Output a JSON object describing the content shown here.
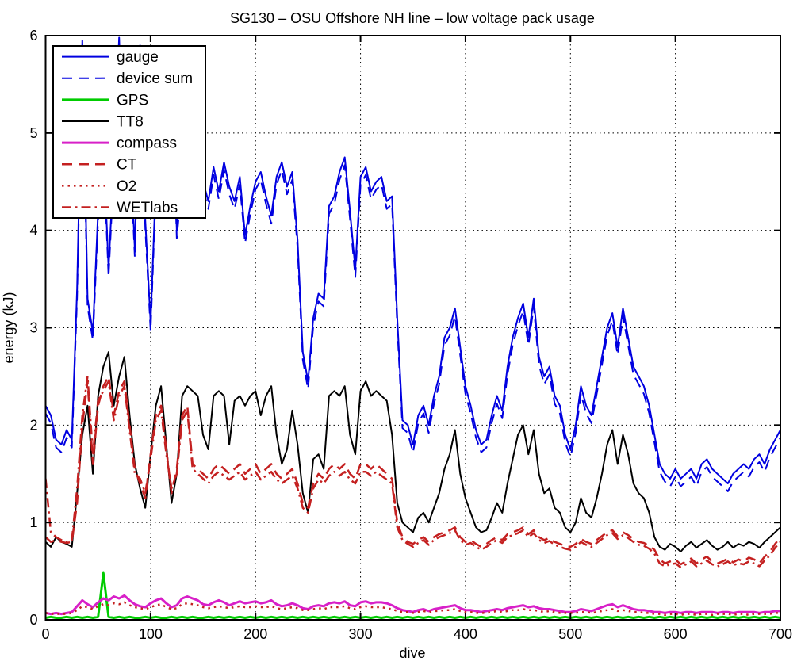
{
  "figure": {
    "background": "#ffffff",
    "axes_color": "#000000",
    "grid_color": "#000000"
  },
  "chart_data": {
    "type": "line",
    "title": "SG130 – OSU Offshore NH line – low voltage pack usage",
    "xlabel": "dive",
    "ylabel": "energy (kJ)",
    "xlim": [
      0,
      700
    ],
    "ylim": [
      0,
      6
    ],
    "xticks": [
      0,
      100,
      200,
      300,
      400,
      500,
      600,
      700
    ],
    "yticks": [
      0,
      1,
      2,
      3,
      4,
      5,
      6
    ],
    "grid": true,
    "grid_style": "dotted",
    "legend_position": "top-left",
    "x_start": 0,
    "x_step": 5,
    "series": [
      {
        "name": "gauge",
        "color": "#0000e0",
        "style": "solid",
        "width": 2,
        "values": [
          2.2,
          2.1,
          1.85,
          1.8,
          1.95,
          1.85,
          3.4,
          5.95,
          3.3,
          2.95,
          4.2,
          4.9,
          3.6,
          4.7,
          5.98,
          4.3,
          5.0,
          3.8,
          5.9,
          4.1,
          3.05,
          4.5,
          5.6,
          4.2,
          5.7,
          4.0,
          4.6,
          5.0,
          4.3,
          5.8,
          4.5,
          4.3,
          4.65,
          4.4,
          4.7,
          4.45,
          4.3,
          4.55,
          3.95,
          4.25,
          4.5,
          4.6,
          4.35,
          4.15,
          4.55,
          4.7,
          4.45,
          4.6,
          3.9,
          2.75,
          2.45,
          3.1,
          3.35,
          3.3,
          4.25,
          4.35,
          4.6,
          4.75,
          4.2,
          3.6,
          4.55,
          4.65,
          4.4,
          4.5,
          4.55,
          4.3,
          4.35,
          3.1,
          2.05,
          2.0,
          1.8,
          2.1,
          2.2,
          2.0,
          2.3,
          2.5,
          2.9,
          3.0,
          3.2,
          2.8,
          2.4,
          2.2,
          1.95,
          1.8,
          1.85,
          2.1,
          2.3,
          2.15,
          2.6,
          2.9,
          3.1,
          3.25,
          2.9,
          3.3,
          2.7,
          2.5,
          2.6,
          2.3,
          2.2,
          1.9,
          1.75,
          2.0,
          2.4,
          2.2,
          2.1,
          2.4,
          2.7,
          3.0,
          3.15,
          2.8,
          3.2,
          2.9,
          2.6,
          2.5,
          2.4,
          2.2,
          1.9,
          1.6,
          1.5,
          1.45,
          1.55,
          1.45,
          1.5,
          1.55,
          1.45,
          1.6,
          1.65,
          1.55,
          1.5,
          1.45,
          1.4,
          1.5,
          1.55,
          1.6,
          1.55,
          1.65,
          1.7,
          1.6,
          1.75,
          1.85,
          1.95
        ]
      },
      {
        "name": "device sum",
        "color": "#0000e0",
        "style": "dashed",
        "width": 2,
        "values": [
          2.12,
          2.02,
          1.77,
          1.72,
          1.87,
          1.77,
          3.32,
          5.87,
          3.22,
          2.87,
          4.12,
          4.82,
          3.52,
          4.62,
          5.9,
          4.22,
          4.92,
          3.72,
          5.82,
          4.02,
          2.97,
          4.42,
          5.52,
          4.12,
          5.62,
          3.92,
          4.52,
          4.92,
          4.22,
          5.72,
          4.42,
          4.22,
          4.57,
          4.32,
          4.62,
          4.37,
          4.22,
          4.47,
          3.87,
          4.17,
          4.42,
          4.52,
          4.27,
          4.07,
          4.47,
          4.62,
          4.37,
          4.52,
          3.82,
          2.67,
          2.37,
          3.02,
          3.27,
          3.22,
          4.17,
          4.27,
          4.52,
          4.67,
          4.12,
          3.52,
          4.47,
          4.57,
          4.32,
          4.42,
          4.47,
          4.22,
          4.27,
          3.02,
          1.97,
          1.92,
          1.72,
          2.02,
          2.12,
          1.92,
          2.22,
          2.42,
          2.82,
          2.92,
          3.12,
          2.72,
          2.32,
          2.12,
          1.87,
          1.72,
          1.77,
          2.02,
          2.22,
          2.07,
          2.52,
          2.82,
          3.02,
          3.17,
          2.82,
          3.22,
          2.62,
          2.42,
          2.52,
          2.22,
          2.12,
          1.82,
          1.67,
          1.92,
          2.32,
          2.12,
          2.02,
          2.32,
          2.62,
          2.92,
          3.07,
          2.72,
          3.12,
          2.82,
          2.52,
          2.42,
          2.32,
          2.12,
          1.82,
          1.52,
          1.42,
          1.37,
          1.47,
          1.37,
          1.42,
          1.47,
          1.37,
          1.52,
          1.57,
          1.47,
          1.42,
          1.37,
          1.32,
          1.42,
          1.47,
          1.52,
          1.47,
          1.57,
          1.62,
          1.52,
          1.67,
          1.77,
          1.87
        ]
      },
      {
        "name": "GPS",
        "color": "#00cc00",
        "style": "solid",
        "width": 3,
        "values": [
          0.02,
          0.03,
          0.02,
          0.02,
          0.03,
          0.02,
          0.03,
          0.02,
          0.03,
          0.02,
          0.03,
          0.48,
          0.03,
          0.02,
          0.03,
          0.02,
          0.03,
          0.02,
          0.02,
          0.03,
          0.02,
          0.03,
          0.02,
          0.02,
          0.03,
          0.02,
          0.03,
          0.02,
          0.03,
          0.02,
          0.02,
          0.03,
          0.02,
          0.03,
          0.02,
          0.03,
          0.02,
          0.03,
          0.02,
          0.03,
          0.02,
          0.03,
          0.02,
          0.03,
          0.02,
          0.03,
          0.02,
          0.03,
          0.02,
          0.03,
          0.02,
          0.03,
          0.02,
          0.03,
          0.02,
          0.03,
          0.02,
          0.03,
          0.02,
          0.03,
          0.02,
          0.03,
          0.02,
          0.03,
          0.02,
          0.03,
          0.02,
          0.03,
          0.02,
          0.03,
          0.02,
          0.03,
          0.02,
          0.03,
          0.02,
          0.03,
          0.02,
          0.03,
          0.02,
          0.03,
          0.02,
          0.03,
          0.02,
          0.03,
          0.02,
          0.03,
          0.02,
          0.03,
          0.02,
          0.03,
          0.02,
          0.03,
          0.02,
          0.03,
          0.02,
          0.03,
          0.02,
          0.03,
          0.02,
          0.03,
          0.02,
          0.03,
          0.02,
          0.03,
          0.02,
          0.03,
          0.02,
          0.03,
          0.02,
          0.03,
          0.02,
          0.03,
          0.02,
          0.03,
          0.02,
          0.03,
          0.02,
          0.03,
          0.02,
          0.03,
          0.02,
          0.03,
          0.02,
          0.03,
          0.02,
          0.03,
          0.02,
          0.03,
          0.02,
          0.03,
          0.02,
          0.03,
          0.02,
          0.03,
          0.02,
          0.03,
          0.02,
          0.03,
          0.02,
          0.03,
          0.02
        ]
      },
      {
        "name": "TT8",
        "color": "#000000",
        "style": "solid",
        "width": 2,
        "values": [
          0.8,
          0.75,
          0.85,
          0.8,
          0.78,
          0.75,
          1.3,
          1.9,
          2.2,
          1.5,
          2.3,
          2.6,
          2.75,
          2.2,
          2.5,
          2.7,
          2.1,
          1.6,
          1.35,
          1.15,
          1.7,
          2.2,
          2.4,
          1.8,
          1.2,
          1.5,
          2.3,
          2.4,
          2.35,
          2.3,
          1.9,
          1.75,
          2.3,
          2.35,
          2.3,
          1.8,
          2.25,
          2.3,
          2.2,
          2.3,
          2.35,
          2.1,
          2.3,
          2.4,
          1.9,
          1.6,
          1.75,
          2.15,
          1.8,
          1.3,
          1.1,
          1.65,
          1.7,
          1.55,
          2.3,
          2.35,
          2.3,
          2.4,
          1.9,
          1.7,
          2.35,
          2.45,
          2.3,
          2.35,
          2.3,
          2.25,
          1.9,
          1.2,
          1.0,
          0.95,
          0.9,
          1.05,
          1.1,
          1.0,
          1.15,
          1.3,
          1.55,
          1.7,
          1.95,
          1.5,
          1.25,
          1.1,
          0.95,
          0.9,
          0.92,
          1.05,
          1.2,
          1.1,
          1.4,
          1.65,
          1.9,
          2.0,
          1.7,
          1.95,
          1.5,
          1.3,
          1.35,
          1.15,
          1.1,
          0.95,
          0.9,
          1.0,
          1.25,
          1.1,
          1.05,
          1.25,
          1.5,
          1.8,
          1.95,
          1.6,
          1.9,
          1.7,
          1.4,
          1.3,
          1.25,
          1.1,
          0.85,
          0.75,
          0.72,
          0.78,
          0.75,
          0.7,
          0.76,
          0.8,
          0.74,
          0.78,
          0.82,
          0.76,
          0.72,
          0.75,
          0.8,
          0.74,
          0.78,
          0.76,
          0.8,
          0.78,
          0.74,
          0.8,
          0.85,
          0.9,
          0.95
        ]
      },
      {
        "name": "compass",
        "color": "#d820c8",
        "style": "solid",
        "width": 3,
        "values": [
          0.07,
          0.06,
          0.07,
          0.06,
          0.07,
          0.08,
          0.14,
          0.2,
          0.16,
          0.13,
          0.18,
          0.22,
          0.2,
          0.24,
          0.22,
          0.25,
          0.2,
          0.16,
          0.14,
          0.13,
          0.17,
          0.2,
          0.22,
          0.17,
          0.13,
          0.15,
          0.22,
          0.24,
          0.22,
          0.2,
          0.16,
          0.15,
          0.18,
          0.2,
          0.18,
          0.15,
          0.17,
          0.19,
          0.17,
          0.18,
          0.19,
          0.17,
          0.18,
          0.2,
          0.16,
          0.14,
          0.15,
          0.17,
          0.15,
          0.12,
          0.11,
          0.14,
          0.15,
          0.14,
          0.17,
          0.18,
          0.17,
          0.19,
          0.15,
          0.14,
          0.18,
          0.19,
          0.17,
          0.18,
          0.18,
          0.17,
          0.15,
          0.12,
          0.1,
          0.09,
          0.08,
          0.1,
          0.11,
          0.09,
          0.11,
          0.12,
          0.13,
          0.14,
          0.15,
          0.12,
          0.1,
          0.1,
          0.09,
          0.08,
          0.09,
          0.1,
          0.11,
          0.1,
          0.12,
          0.13,
          0.14,
          0.15,
          0.13,
          0.14,
          0.12,
          0.11,
          0.11,
          0.1,
          0.09,
          0.08,
          0.08,
          0.09,
          0.11,
          0.1,
          0.09,
          0.11,
          0.13,
          0.15,
          0.16,
          0.13,
          0.15,
          0.13,
          0.11,
          0.1,
          0.1,
          0.09,
          0.08,
          0.08,
          0.07,
          0.08,
          0.08,
          0.07,
          0.08,
          0.08,
          0.07,
          0.08,
          0.08,
          0.08,
          0.07,
          0.08,
          0.08,
          0.07,
          0.08,
          0.08,
          0.08,
          0.08,
          0.07,
          0.08,
          0.08,
          0.09,
          0.09
        ]
      },
      {
        "name": "CT",
        "color": "#c42020",
        "style": "dashed",
        "width": 2.5,
        "values": [
          0.85,
          0.8,
          0.82,
          0.8,
          0.79,
          0.8,
          1.2,
          2.0,
          2.45,
          1.6,
          2.2,
          2.4,
          2.5,
          2.1,
          2.35,
          2.45,
          2.0,
          1.55,
          1.4,
          1.25,
          1.7,
          2.1,
          2.2,
          1.75,
          1.3,
          1.55,
          2.1,
          2.2,
          1.6,
          1.55,
          1.5,
          1.45,
          1.55,
          1.6,
          1.55,
          1.5,
          1.55,
          1.6,
          1.5,
          1.55,
          1.6,
          1.5,
          1.55,
          1.6,
          1.5,
          1.45,
          1.5,
          1.55,
          1.4,
          1.2,
          1.15,
          1.4,
          1.5,
          1.45,
          1.55,
          1.6,
          1.55,
          1.6,
          1.5,
          1.45,
          1.6,
          1.6,
          1.55,
          1.6,
          1.55,
          1.5,
          1.45,
          1.0,
          0.85,
          0.8,
          0.78,
          0.82,
          0.85,
          0.8,
          0.85,
          0.88,
          0.9,
          0.92,
          0.95,
          0.85,
          0.8,
          0.82,
          0.78,
          0.75,
          0.78,
          0.82,
          0.85,
          0.82,
          0.88,
          0.9,
          0.92,
          0.95,
          0.88,
          0.92,
          0.85,
          0.82,
          0.84,
          0.8,
          0.78,
          0.76,
          0.75,
          0.78,
          0.83,
          0.8,
          0.78,
          0.82,
          0.86,
          0.9,
          0.92,
          0.86,
          0.9,
          0.87,
          0.83,
          0.8,
          0.79,
          0.76,
          0.72,
          0.62,
          0.58,
          0.6,
          0.62,
          0.57,
          0.6,
          0.63,
          0.58,
          0.62,
          0.65,
          0.6,
          0.58,
          0.6,
          0.63,
          0.59,
          0.62,
          0.6,
          0.64,
          0.62,
          0.58,
          0.65,
          0.7,
          0.78,
          0.85
        ]
      },
      {
        "name": "O2",
        "color": "#c42020",
        "style": "dotted",
        "width": 2.5,
        "values": [
          0.07,
          0.06,
          0.06,
          0.06,
          0.06,
          0.07,
          0.1,
          0.14,
          0.13,
          0.11,
          0.14,
          0.16,
          0.15,
          0.17,
          0.16,
          0.18,
          0.15,
          0.13,
          0.12,
          0.11,
          0.13,
          0.15,
          0.16,
          0.13,
          0.11,
          0.12,
          0.16,
          0.17,
          0.16,
          0.15,
          0.13,
          0.12,
          0.13,
          0.14,
          0.13,
          0.12,
          0.13,
          0.14,
          0.13,
          0.13,
          0.14,
          0.13,
          0.13,
          0.14,
          0.12,
          0.11,
          0.12,
          0.13,
          0.12,
          0.1,
          0.1,
          0.11,
          0.12,
          0.11,
          0.13,
          0.13,
          0.13,
          0.14,
          0.12,
          0.11,
          0.13,
          0.14,
          0.13,
          0.13,
          0.13,
          0.12,
          0.11,
          0.09,
          0.08,
          0.08,
          0.07,
          0.08,
          0.09,
          0.08,
          0.09,
          0.09,
          0.1,
          0.1,
          0.11,
          0.09,
          0.08,
          0.08,
          0.07,
          0.07,
          0.07,
          0.08,
          0.09,
          0.08,
          0.09,
          0.1,
          0.1,
          0.11,
          0.1,
          0.1,
          0.09,
          0.08,
          0.09,
          0.08,
          0.07,
          0.07,
          0.07,
          0.07,
          0.08,
          0.08,
          0.07,
          0.08,
          0.09,
          0.1,
          0.11,
          0.09,
          0.1,
          0.09,
          0.08,
          0.08,
          0.07,
          0.07,
          0.06,
          0.06,
          0.05,
          0.06,
          0.06,
          0.05,
          0.06,
          0.06,
          0.05,
          0.06,
          0.06,
          0.05,
          0.06,
          0.06,
          0.06,
          0.05,
          0.06,
          0.06,
          0.05,
          0.06,
          0.06,
          0.06,
          0.06,
          0.07,
          0.07
        ]
      },
      {
        "name": "WETlabs",
        "color": "#c42020",
        "style": "dashdot",
        "width": 2.5,
        "values": [
          1.45,
          0.9,
          0.85,
          0.82,
          0.8,
          0.82,
          1.35,
          2.1,
          2.5,
          1.7,
          2.25,
          2.35,
          2.45,
          2.05,
          2.3,
          2.4,
          1.95,
          1.5,
          1.45,
          1.3,
          1.65,
          2.05,
          2.15,
          1.7,
          1.35,
          1.5,
          2.05,
          2.15,
          1.55,
          1.5,
          1.45,
          1.4,
          1.48,
          1.52,
          1.48,
          1.44,
          1.48,
          1.52,
          1.44,
          1.48,
          1.52,
          1.44,
          1.48,
          1.52,
          1.44,
          1.4,
          1.44,
          1.48,
          1.35,
          1.15,
          1.1,
          1.35,
          1.44,
          1.4,
          1.48,
          1.52,
          1.48,
          1.52,
          1.44,
          1.4,
          1.52,
          1.52,
          1.48,
          1.52,
          1.48,
          1.44,
          1.4,
          0.95,
          0.82,
          0.78,
          0.75,
          0.79,
          0.82,
          0.77,
          0.82,
          0.85,
          0.87,
          0.89,
          0.92,
          0.82,
          0.77,
          0.79,
          0.75,
          0.72,
          0.75,
          0.79,
          0.82,
          0.79,
          0.85,
          0.87,
          0.89,
          0.92,
          0.85,
          0.89,
          0.82,
          0.79,
          0.81,
          0.77,
          0.75,
          0.73,
          0.72,
          0.75,
          0.8,
          0.77,
          0.75,
          0.79,
          0.83,
          0.87,
          0.89,
          0.83,
          0.87,
          0.84,
          0.8,
          0.77,
          0.76,
          0.73,
          0.68,
          0.58,
          0.55,
          0.57,
          0.58,
          0.54,
          0.57,
          0.6,
          0.55,
          0.58,
          0.61,
          0.57,
          0.55,
          0.57,
          0.6,
          0.56,
          0.58,
          0.57,
          0.6,
          0.58,
          0.55,
          0.61,
          0.66,
          0.74,
          0.8
        ]
      }
    ]
  }
}
